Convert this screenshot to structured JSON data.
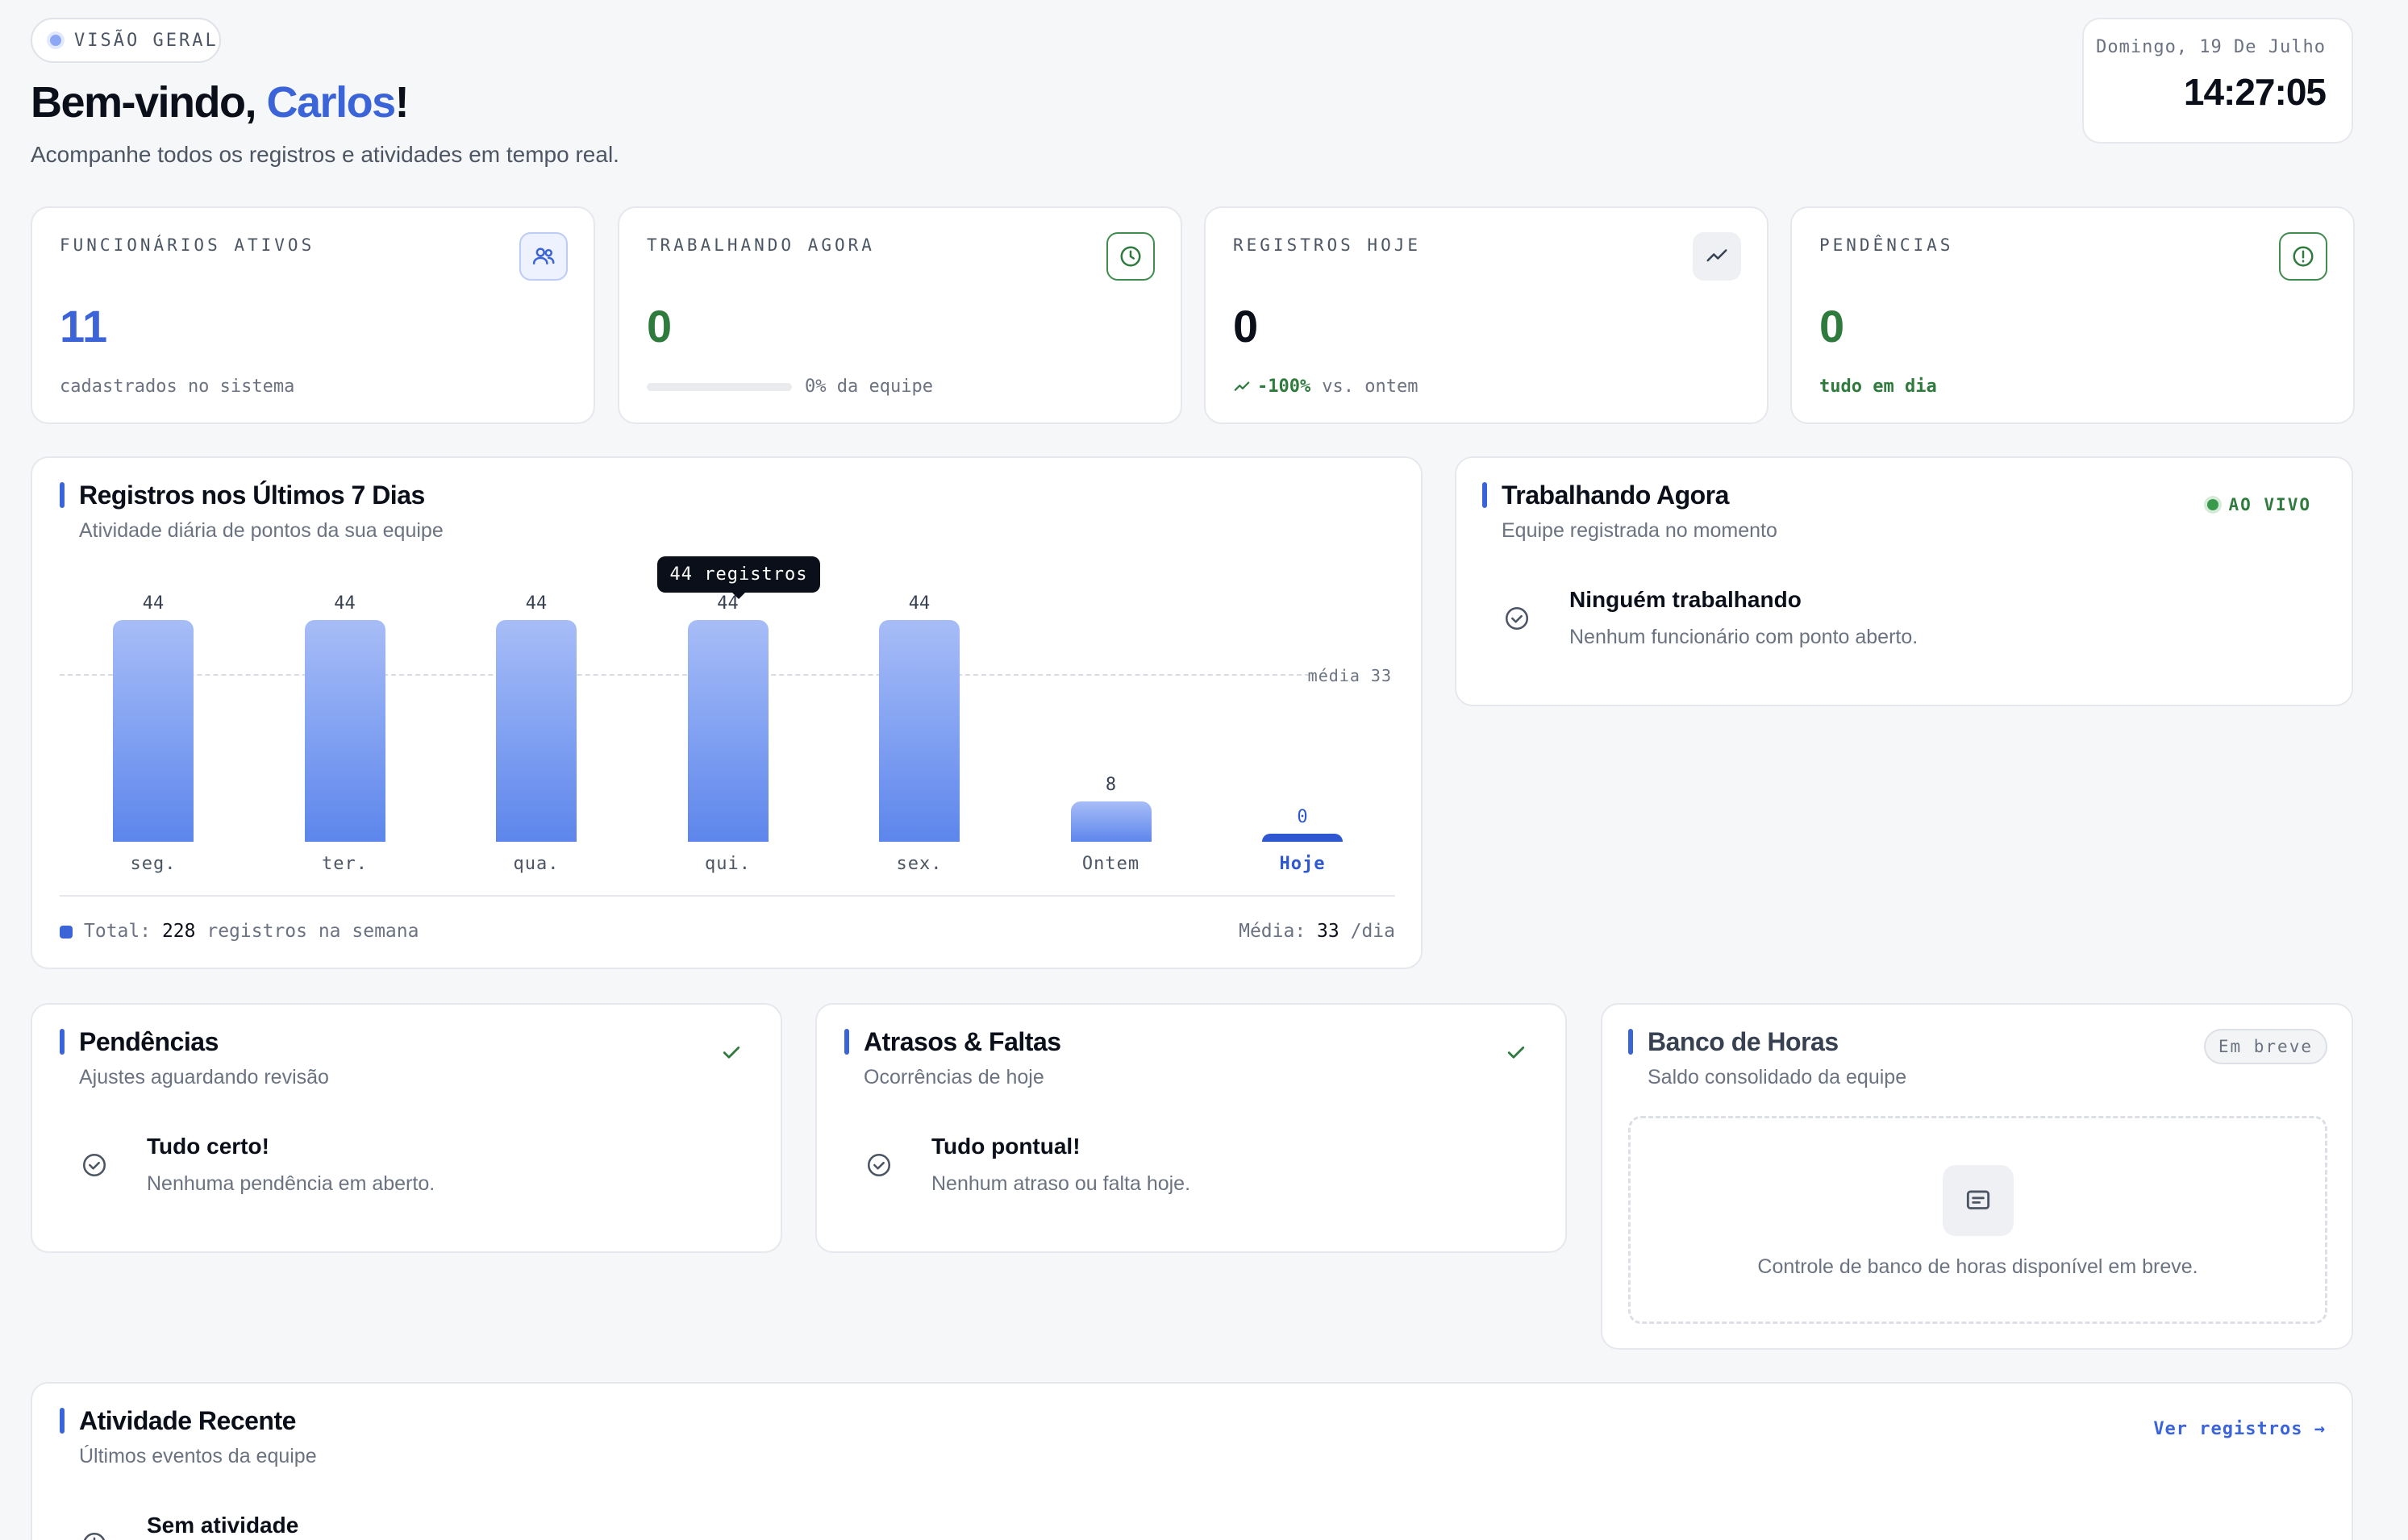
{
  "header": {
    "badge": "VISÃO GERAL",
    "greeting": "Bem-vindo, ",
    "user_name": "Carlos",
    "greeting_end": "!",
    "subtitle": "Acompanhe todos os registros e atividades em tempo real.",
    "date": "Domingo, 19 De Julho",
    "time": "14:27:05"
  },
  "stats": [
    {
      "label": "FUNCIONÁRIOS ATIVOS",
      "value": "11",
      "footer": "cadastrados no sistema",
      "icon": "users-icon",
      "color": "#3a64d8"
    },
    {
      "label": "TRABALHANDO AGORA",
      "value": "0",
      "footer": "0% da equipe",
      "progress": 0,
      "icon": "clock-icon",
      "color": "#2f7a3d"
    },
    {
      "label": "REGISTROS HOJE",
      "value": "0",
      "trend": "-100%",
      "footer": "vs. ontem",
      "icon": "trend-icon",
      "color": "#0b0f19"
    },
    {
      "label": "PENDÊNCIAS",
      "value": "0",
      "footer": "tudo em dia",
      "icon": "alert-icon",
      "color": "#2f7a3d"
    }
  ],
  "chart_section": {
    "title": "Registros nos Últimos 7 Dias",
    "subtitle": "Atividade diária de pontos da sua equipe",
    "tooltip": "44 registros",
    "avg_label": "média 33",
    "total_prefix": "Total:",
    "total_value": "228",
    "total_suffix": "registros na semana",
    "avg_prefix": "Média:",
    "avg_value": "33",
    "avg_suffix": "/dia"
  },
  "chart_data": {
    "type": "bar",
    "categories": [
      "seg.",
      "ter.",
      "qua.",
      "qui.",
      "sex.",
      "Ontem",
      "Hoje"
    ],
    "values": [
      44,
      44,
      44,
      44,
      44,
      8,
      0
    ],
    "average": 33,
    "ylim": [
      0,
      48
    ],
    "highlight_index": 6,
    "colors": {
      "bar": "#5d86ec",
      "today": "#2e57d1"
    }
  },
  "working_now": {
    "title": "Trabalhando Agora",
    "subtitle": "Equipe registrada no momento",
    "live": "AO VIVO",
    "empty_title": "Ninguém trabalhando",
    "empty_desc": "Nenhum funcionário com ponto aberto."
  },
  "pendencias": {
    "title": "Pendências",
    "subtitle": "Ajustes aguardando revisão",
    "empty_title": "Tudo certo!",
    "empty_desc": "Nenhuma pendência em aberto."
  },
  "atrasos": {
    "title": "Atrasos & Faltas",
    "subtitle": "Ocorrências de hoje",
    "empty_title": "Tudo pontual!",
    "empty_desc": "Nenhum atraso ou falta hoje."
  },
  "banco_horas": {
    "title": "Banco de Horas",
    "subtitle": "Saldo consolidado da equipe",
    "badge": "Em breve",
    "message": "Controle de banco de horas disponível em breve."
  },
  "atividade": {
    "title": "Atividade Recente",
    "subtitle": "Últimos eventos da equipe",
    "link": "Ver registros →",
    "empty_title": "Sem atividade"
  }
}
